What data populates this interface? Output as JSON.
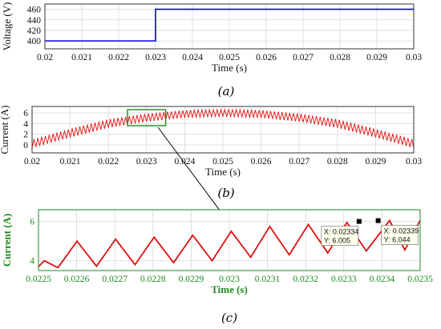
{
  "colors": {
    "voltage_line": "#0000ee",
    "current_line": "#e01010",
    "zoom_box": "#1f8a1f",
    "panel_c_axes": "#1f8a1f",
    "grid": "#d9d9d9",
    "arrow": "#000000"
  },
  "chart_data": [
    {
      "id": "a",
      "type": "line",
      "caption": "(a)",
      "xlabel": "Time (s)",
      "ylabel": "Voltage (V)",
      "xlim": [
        0.02,
        0.03
      ],
      "ylim": [
        385,
        470
      ],
      "xticks": [
        "0.02",
        "0.021",
        "0.022",
        "0.023",
        "0.024",
        "0.025",
        "0.026",
        "0.027",
        "0.028",
        "0.029",
        "0.03"
      ],
      "yticks": [
        "400",
        "420",
        "440",
        "460"
      ],
      "grid": true,
      "series": [
        {
          "x": [
            0.02,
            0.023,
            0.023,
            0.03
          ],
          "y": [
            400,
            400,
            460,
            460
          ]
        }
      ]
    },
    {
      "id": "b",
      "type": "line",
      "caption": "(b)",
      "xlabel": "Time (s)",
      "ylabel": "Current (A)",
      "xlim": [
        0.02,
        0.03
      ],
      "ylim": [
        -1.5,
        7.2
      ],
      "xticks": [
        "0.02",
        "0.021",
        "0.022",
        "0.023",
        "0.024",
        "0.025",
        "0.026",
        "0.027",
        "0.028",
        "0.029",
        "0.03"
      ],
      "yticks": [
        "0",
        "2",
        "4",
        "6"
      ],
      "grid": true,
      "ripple": {
        "period": 0.0001,
        "envelope_x": [
          0.02,
          0.021,
          0.022,
          0.023,
          0.024,
          0.025,
          0.026,
          0.027,
          0.028,
          0.029,
          0.03
        ],
        "center": [
          0.2,
          2.2,
          4.0,
          5.1,
          5.8,
          6.0,
          5.8,
          5.1,
          4.0,
          2.2,
          0.2
        ],
        "amplitude": [
          0.8,
          0.8,
          0.8,
          0.75,
          0.7,
          0.65,
          0.7,
          0.75,
          0.8,
          0.8,
          0.8
        ]
      },
      "zoom_region": {
        "x": [
          0.0225,
          0.0235
        ],
        "y": [
          3.6,
          6.6
        ]
      }
    },
    {
      "id": "c",
      "type": "line",
      "caption": "(c)",
      "xlabel": "Time (s)",
      "ylabel": "Current (A)",
      "xlim": [
        0.0225,
        0.0235
      ],
      "ylim": [
        3.5,
        6.6
      ],
      "xticks": [
        "0.0225",
        "0.0226",
        "0.0227",
        "0.0228",
        "0.0229",
        "0.023",
        "0.0231",
        "0.0232",
        "0.0233",
        "0.0234",
        "0.0235"
      ],
      "yticks": [
        "4",
        "6"
      ],
      "grid": true,
      "sawtooth": {
        "troughs": [
          [
            0.0225,
            3.7
          ],
          [
            0.022551,
            3.65
          ],
          [
            0.022652,
            3.72
          ],
          [
            0.022753,
            3.8
          ],
          [
            0.022854,
            3.9
          ],
          [
            0.022955,
            4.0
          ],
          [
            0.023056,
            4.18
          ],
          [
            0.023157,
            4.3
          ],
          [
            0.023258,
            4.4
          ],
          [
            0.023359,
            4.5
          ],
          [
            0.02346,
            4.55
          ]
        ],
        "peaks": [
          [
            0.022515,
            4.0
          ],
          [
            0.022601,
            5.0
          ],
          [
            0.022702,
            5.1
          ],
          [
            0.022803,
            5.2
          ],
          [
            0.022904,
            5.3
          ],
          [
            0.023005,
            5.5
          ],
          [
            0.023106,
            5.75
          ],
          [
            0.023207,
            5.85
          ],
          [
            0.023308,
            5.95
          ],
          [
            0.02342,
            6.05
          ],
          [
            0.023501,
            6.1
          ]
        ]
      },
      "datatips": [
        {
          "x_label": "X: 0.02334",
          "y_label": "Y: 6.005",
          "x": 0.02334,
          "y": 6.005
        },
        {
          "x_label": "X: 0.02339",
          "y_label": "Y: 6.044",
          "x": 0.02339,
          "y": 6.044
        }
      ]
    }
  ]
}
